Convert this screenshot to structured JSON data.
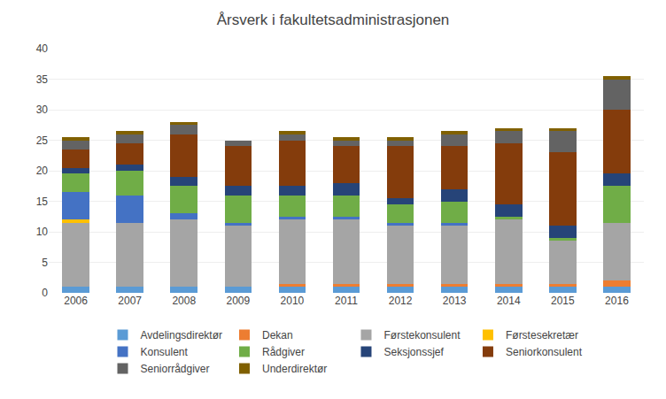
{
  "chart_data": {
    "type": "bar",
    "title": "Årsverk i fakultetsadministrasjonen",
    "stacked": true,
    "categories": [
      "2006",
      "2007",
      "2008",
      "2009",
      "2010",
      "2011",
      "2012",
      "2013",
      "2014",
      "2015",
      "2016"
    ],
    "series": [
      {
        "name": "Avdelingsdirektør",
        "color": "#5b9bd5",
        "values": [
          1.0,
          1.0,
          1.0,
          1.0,
          1.0,
          1.0,
          1.0,
          1.0,
          1.0,
          1.0,
          1.0
        ]
      },
      {
        "name": "Dekan",
        "color": "#ed7d31",
        "values": [
          0.0,
          0.0,
          0.0,
          0.0,
          0.5,
          0.5,
          0.5,
          0.5,
          0.5,
          0.5,
          1.0
        ]
      },
      {
        "name": "Førstekonsulent",
        "color": "#a5a5a5",
        "values": [
          10.5,
          10.5,
          11.0,
          10.0,
          10.5,
          10.5,
          9.5,
          9.5,
          10.5,
          7.0,
          9.5
        ]
      },
      {
        "name": "Førstesekretær",
        "color": "#ffc000",
        "values": [
          0.5,
          0.0,
          0.0,
          0.0,
          0.0,
          0.0,
          0.0,
          0.0,
          0.0,
          0.0,
          0.0
        ]
      },
      {
        "name": "Konsulent",
        "color": "#4472c4",
        "values": [
          4.5,
          4.5,
          1.0,
          0.5,
          0.5,
          0.5,
          0.5,
          0.5,
          0.0,
          0.0,
          0.0
        ]
      },
      {
        "name": "Rådgiver",
        "color": "#70ad47",
        "values": [
          3.0,
          4.0,
          4.5,
          4.5,
          3.5,
          3.5,
          3.0,
          3.5,
          0.5,
          0.5,
          6.0
        ]
      },
      {
        "name": "Seksjonssjef",
        "color": "#264478",
        "values": [
          1.0,
          1.0,
          1.5,
          1.5,
          1.5,
          2.0,
          1.0,
          2.0,
          2.0,
          2.0,
          2.0
        ]
      },
      {
        "name": "Seniorkonsulent",
        "color": "#843c0c",
        "values": [
          3.0,
          3.5,
          7.0,
          6.5,
          7.5,
          6.0,
          8.5,
          7.0,
          10.0,
          12.0,
          10.5
        ]
      },
      {
        "name": "Seniorrådgiver",
        "color": "#636363",
        "values": [
          1.5,
          1.5,
          1.5,
          1.0,
          1.0,
          1.0,
          1.0,
          2.0,
          2.0,
          3.5,
          5.0
        ]
      },
      {
        "name": "Underdirektør",
        "color": "#806000",
        "values": [
          0.5,
          0.5,
          0.5,
          0.0,
          0.5,
          0.5,
          0.5,
          0.5,
          0.5,
          0.5,
          0.5
        ]
      }
    ],
    "ylim": [
      0,
      40
    ],
    "yticks": [
      0,
      5,
      10,
      15,
      20,
      25,
      30,
      35,
      40
    ],
    "grid": true,
    "legend": "bottom"
  }
}
